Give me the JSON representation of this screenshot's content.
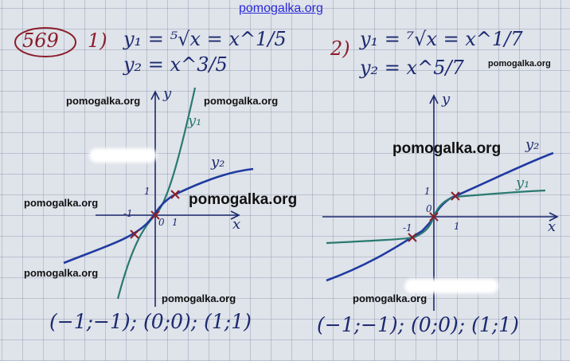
{
  "watermark": "pomogalka.org",
  "problem_number": "569",
  "part1": {
    "label": "1)",
    "eq1": "y₁ = ⁵√x = x^1/5",
    "eq2": "y₂ = x^3/5",
    "curve1_label": "y₁",
    "curve2_label": "y₂",
    "answer": "(−1;−1); (0;0); (1;1)",
    "axis_x": "x",
    "axis_y": "y",
    "tick_one": "1",
    "tick_neg_one": "-1",
    "origin": "0"
  },
  "part2": {
    "label": "2)",
    "eq1": "y₁ = ⁷√x = x^1/7",
    "eq2": "y₂ = x^5/7",
    "curve1_label": "y₁",
    "curve2_label": "y₂",
    "answer": "(−1;−1); (0;0); (1;1)",
    "axis_x": "x",
    "axis_y": "y",
    "tick_one": "1",
    "tick_neg_one": "-1",
    "origin": "0"
  },
  "colors": {
    "ink_blue": "#1c2a6e",
    "curve_blue": "#1f3aa0",
    "curve_green": "#2a7a70",
    "mark_red": "#8a1e2a",
    "watermark_blue": "#2a2ad8"
  }
}
